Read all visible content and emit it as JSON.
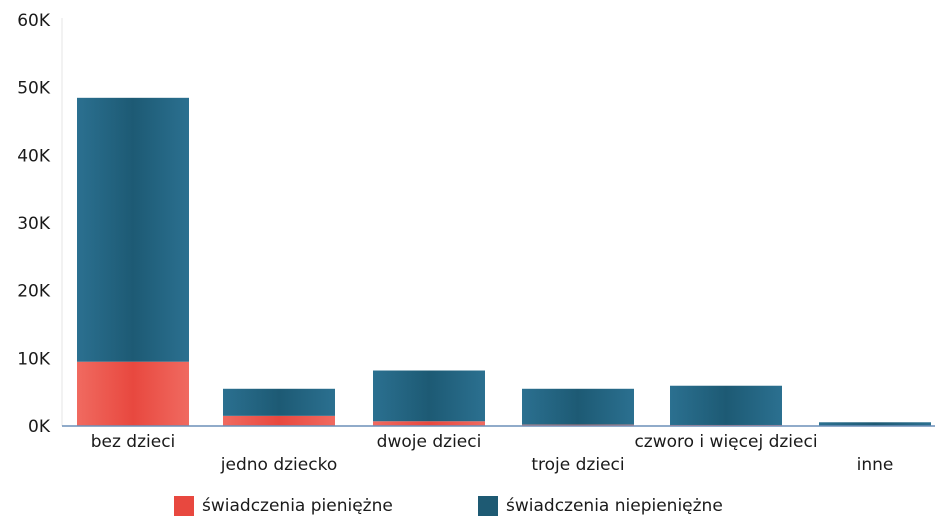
{
  "chart_data": {
    "type": "bar",
    "stacked": true,
    "categories": [
      "bez dzieci",
      "jedno dziecko",
      "dwoje dzieci",
      "troje dzieci",
      "czworo i więcej dzieci",
      "inne"
    ],
    "series": [
      {
        "name": "świadczenia pieniężne",
        "values": [
          9500,
          1500,
          700,
          200,
          150,
          50
        ],
        "color": "#e8483f"
      },
      {
        "name": "świadczenia niepieniężne",
        "values": [
          39000,
          4000,
          7500,
          5300,
          5800,
          500
        ],
        "color": "#1e5a73"
      }
    ],
    "ylim": [
      0,
      60000
    ],
    "yticks": [
      "0K",
      "10K",
      "20K",
      "30K",
      "40K",
      "50K",
      "60K"
    ],
    "grid": false,
    "legend_position": "bottom"
  }
}
